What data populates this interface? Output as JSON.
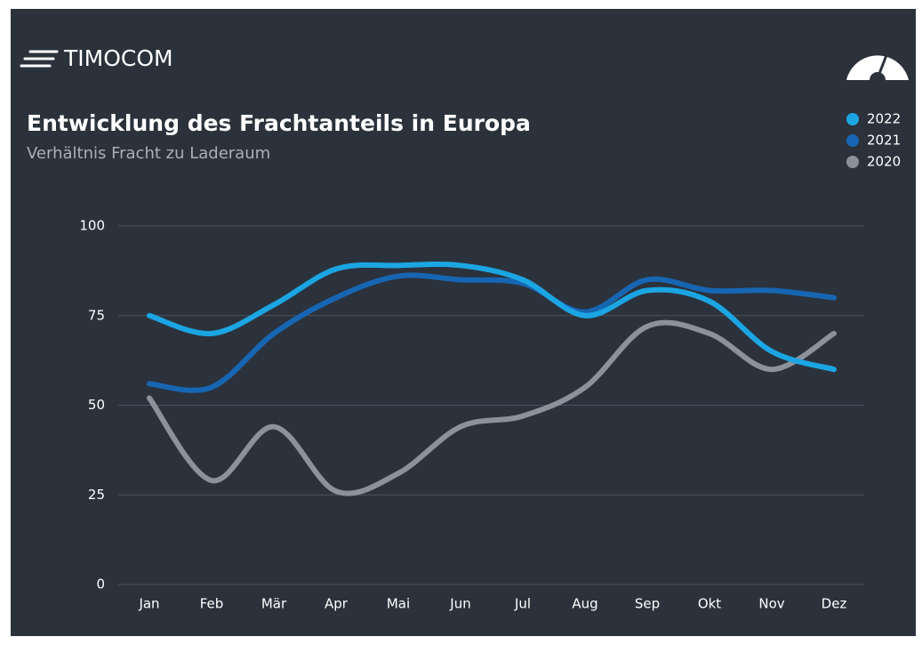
{
  "chart_data": {
    "type": "line",
    "brand": "TIMOCOM",
    "title": "Entwicklung des Frachtanteils in Europa",
    "subtitle": "Verhältnis Fracht zu Laderaum",
    "categories": [
      "Jan",
      "Feb",
      "Mär",
      "Apr",
      "Mai",
      "Jun",
      "Jul",
      "Aug",
      "Sep",
      "Okt",
      "Nov",
      "Dez"
    ],
    "series": [
      {
        "name": "2022",
        "color": "#1ba6e3",
        "values": [
          75,
          70,
          78,
          88,
          89,
          89,
          85,
          75,
          82,
          79,
          65,
          60
        ]
      },
      {
        "name": "2021",
        "color": "#1766b3",
        "values": [
          56,
          55,
          70,
          80,
          86,
          85,
          84,
          76,
          85,
          82,
          82,
          80
        ]
      },
      {
        "name": "2020",
        "color": "#8b929c",
        "values": [
          52,
          29,
          44,
          26,
          31,
          44,
          47,
          55,
          72,
          70,
          60,
          70
        ]
      }
    ],
    "ylim": [
      0,
      100
    ],
    "yticks": [
      0,
      25,
      50,
      75,
      100
    ],
    "grid": true,
    "legend": "top-right"
  }
}
